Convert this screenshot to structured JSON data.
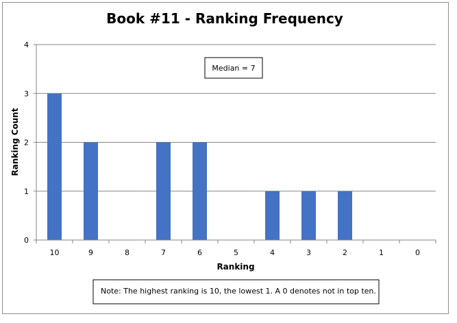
{
  "chart_data": {
    "type": "bar",
    "title": "Book #11 - Ranking Frequency",
    "xlabel": "Ranking",
    "ylabel": "Ranking Count",
    "categories": [
      "10",
      "9",
      "8",
      "7",
      "6",
      "5",
      "4",
      "3",
      "2",
      "1",
      "0"
    ],
    "values": [
      3,
      2,
      0,
      2,
      2,
      0,
      1,
      1,
      1,
      0,
      0
    ],
    "ylim": [
      0,
      4
    ],
    "yticks": [
      "0",
      "1",
      "2",
      "3",
      "4"
    ],
    "grid": true,
    "legend": "none",
    "bar_color": "#4472c4",
    "annotations": {
      "median": "Median = 7",
      "note": "Note: The highest ranking is 10, the lowest 1. A 0 denotes not in top ten."
    }
  }
}
